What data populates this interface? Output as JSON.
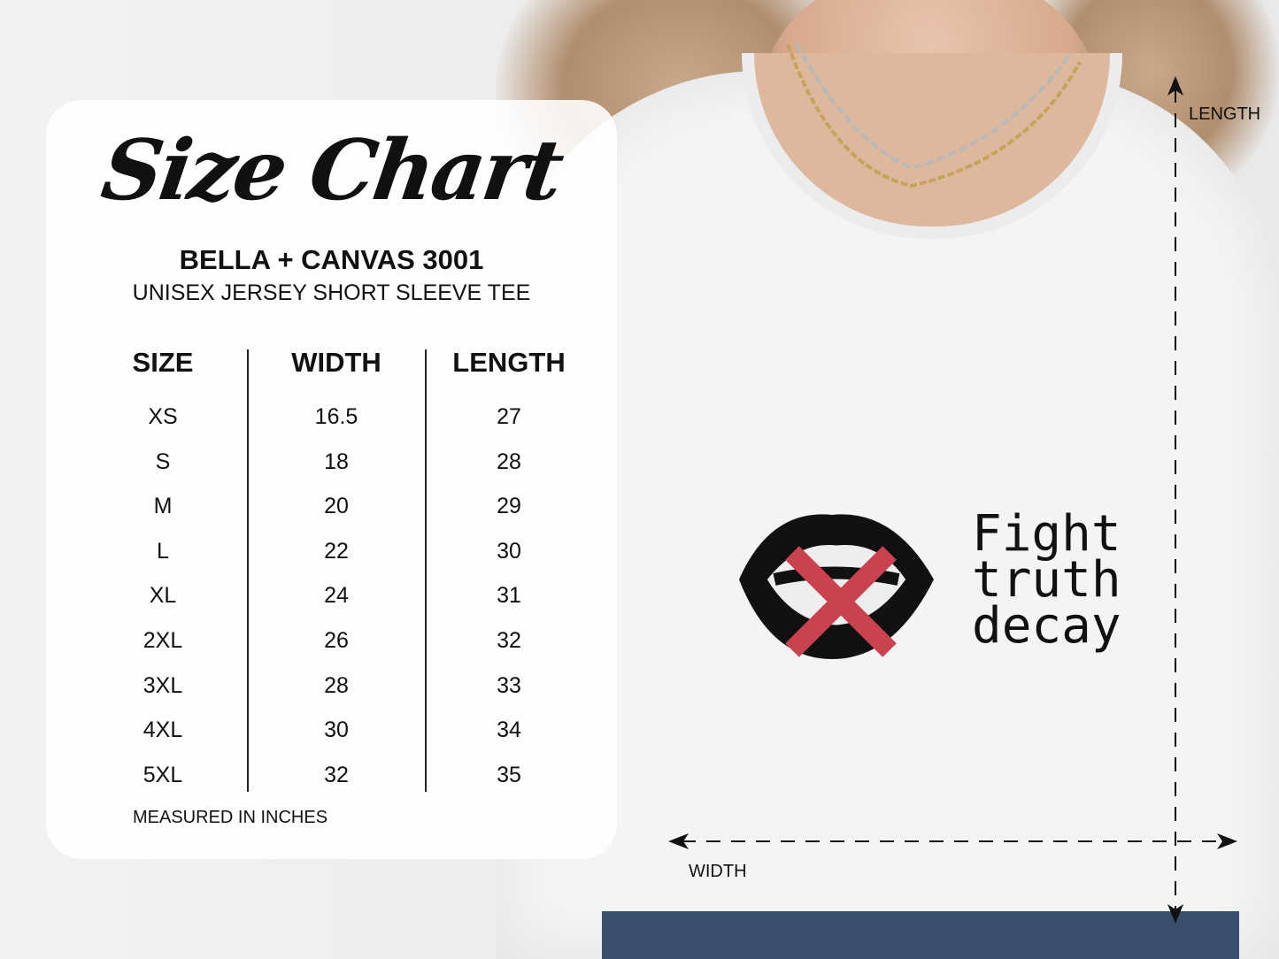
{
  "chart": {
    "title": "Size Chart",
    "brand": "BELLA + CANVAS 3001",
    "product": "UNISEX JERSEY SHORT SLEEVE TEE",
    "headers": [
      "SIZE",
      "WIDTH",
      "LENGTH"
    ],
    "rows": [
      [
        "XS",
        "16.5",
        "27"
      ],
      [
        "S",
        "18",
        "28"
      ],
      [
        "M",
        "20",
        "29"
      ],
      [
        "L",
        "22",
        "30"
      ],
      [
        "XL",
        "24",
        "31"
      ],
      [
        "2XL",
        "26",
        "32"
      ],
      [
        "3XL",
        "28",
        "33"
      ],
      [
        "4XL",
        "30",
        "34"
      ],
      [
        "5XL",
        "32",
        "35"
      ]
    ],
    "note": "MEASURED IN INCHES"
  },
  "dimensions": {
    "length_label": "LENGTH",
    "width_label": "WIDTH"
  },
  "design": {
    "text_lines": [
      "Fight",
      "truth",
      "decay"
    ],
    "accent_color": "#c8424f"
  }
}
